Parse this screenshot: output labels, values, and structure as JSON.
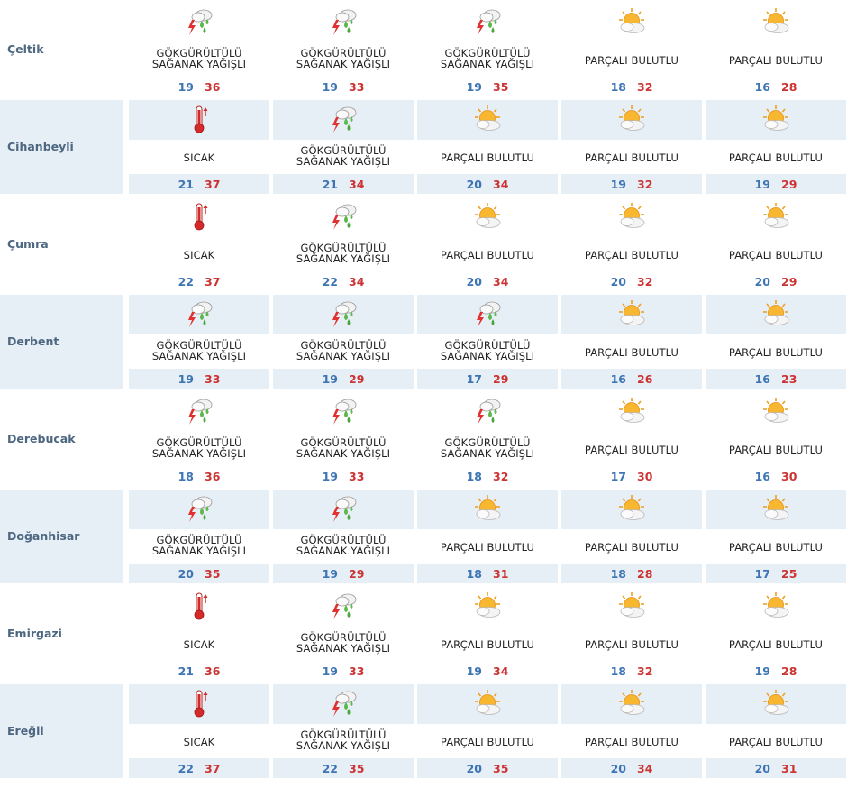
{
  "rows": [
    {
      "city": "Çeltik",
      "days": [
        {
          "icon": "thunder-shower-icon",
          "desc": [
            "GÖKGÜRÜLTÜLÜ",
            "SAĞANAK YAĞIŞLI"
          ],
          "min": "19",
          "max": "36"
        },
        {
          "icon": "thunder-shower-icon",
          "desc": [
            "GÖKGÜRÜLTÜLÜ",
            "SAĞANAK YAĞIŞLI"
          ],
          "min": "19",
          "max": "33"
        },
        {
          "icon": "thunder-shower-icon",
          "desc": [
            "GÖKGÜRÜLTÜLÜ",
            "SAĞANAK YAĞIŞLI"
          ],
          "min": "19",
          "max": "35"
        },
        {
          "icon": "partly-cloudy-icon",
          "desc": [
            "PARÇALI BULUTLU"
          ],
          "min": "18",
          "max": "32"
        },
        {
          "icon": "partly-cloudy-icon",
          "desc": [
            "PARÇALI BULUTLU"
          ],
          "min": "16",
          "max": "28"
        }
      ]
    },
    {
      "city": "Cihanbeyli",
      "days": [
        {
          "icon": "thermometer-hot-icon",
          "desc": [
            "SICAK"
          ],
          "min": "21",
          "max": "37"
        },
        {
          "icon": "thunder-shower-icon",
          "desc": [
            "GÖKGÜRÜLTÜLÜ",
            "SAĞANAK YAĞIŞLI"
          ],
          "min": "21",
          "max": "34"
        },
        {
          "icon": "partly-cloudy-icon",
          "desc": [
            "PARÇALI BULUTLU"
          ],
          "min": "20",
          "max": "34"
        },
        {
          "icon": "partly-cloudy-icon",
          "desc": [
            "PARÇALI BULUTLU"
          ],
          "min": "19",
          "max": "32"
        },
        {
          "icon": "partly-cloudy-icon",
          "desc": [
            "PARÇALI BULUTLU"
          ],
          "min": "19",
          "max": "29"
        }
      ]
    },
    {
      "city": "Çumra",
      "days": [
        {
          "icon": "thermometer-hot-icon",
          "desc": [
            "SICAK"
          ],
          "min": "22",
          "max": "37"
        },
        {
          "icon": "thunder-shower-icon",
          "desc": [
            "GÖKGÜRÜLTÜLÜ",
            "SAĞANAK YAĞIŞLI"
          ],
          "min": "22",
          "max": "34"
        },
        {
          "icon": "partly-cloudy-icon",
          "desc": [
            "PARÇALI BULUTLU"
          ],
          "min": "20",
          "max": "34"
        },
        {
          "icon": "partly-cloudy-icon",
          "desc": [
            "PARÇALI BULUTLU"
          ],
          "min": "20",
          "max": "32"
        },
        {
          "icon": "partly-cloudy-icon",
          "desc": [
            "PARÇALI BULUTLU"
          ],
          "min": "20",
          "max": "29"
        }
      ]
    },
    {
      "city": "Derbent",
      "days": [
        {
          "icon": "thunder-shower-icon",
          "desc": [
            "GÖKGÜRÜLTÜLÜ",
            "SAĞANAK YAĞIŞLI"
          ],
          "min": "19",
          "max": "33"
        },
        {
          "icon": "thunder-shower-icon",
          "desc": [
            "GÖKGÜRÜLTÜLÜ",
            "SAĞANAK YAĞIŞLI"
          ],
          "min": "19",
          "max": "29"
        },
        {
          "icon": "thunder-shower-icon",
          "desc": [
            "GÖKGÜRÜLTÜLÜ",
            "SAĞANAK YAĞIŞLI"
          ],
          "min": "17",
          "max": "29"
        },
        {
          "icon": "partly-cloudy-icon",
          "desc": [
            "PARÇALI BULUTLU"
          ],
          "min": "16",
          "max": "26"
        },
        {
          "icon": "partly-cloudy-icon",
          "desc": [
            "PARÇALI BULUTLU"
          ],
          "min": "16",
          "max": "23"
        }
      ]
    },
    {
      "city": "Derebucak",
      "days": [
        {
          "icon": "thunder-shower-icon",
          "desc": [
            "GÖKGÜRÜLTÜLÜ",
            "SAĞANAK YAĞIŞLI"
          ],
          "min": "18",
          "max": "36"
        },
        {
          "icon": "thunder-shower-icon",
          "desc": [
            "GÖKGÜRÜLTÜLÜ",
            "SAĞANAK YAĞIŞLI"
          ],
          "min": "19",
          "max": "33"
        },
        {
          "icon": "thunder-shower-icon",
          "desc": [
            "GÖKGÜRÜLTÜLÜ",
            "SAĞANAK YAĞIŞLI"
          ],
          "min": "18",
          "max": "32"
        },
        {
          "icon": "partly-cloudy-icon",
          "desc": [
            "PARÇALI BULUTLU"
          ],
          "min": "17",
          "max": "30"
        },
        {
          "icon": "partly-cloudy-icon",
          "desc": [
            "PARÇALI BULUTLU"
          ],
          "min": "16",
          "max": "30"
        }
      ]
    },
    {
      "city": "Doğanhisar",
      "days": [
        {
          "icon": "thunder-shower-icon",
          "desc": [
            "GÖKGÜRÜLTÜLÜ",
            "SAĞANAK YAĞIŞLI"
          ],
          "min": "20",
          "max": "35"
        },
        {
          "icon": "thunder-shower-icon",
          "desc": [
            "GÖKGÜRÜLTÜLÜ",
            "SAĞANAK YAĞIŞLI"
          ],
          "min": "19",
          "max": "29"
        },
        {
          "icon": "partly-cloudy-icon",
          "desc": [
            "PARÇALI BULUTLU"
          ],
          "min": "18",
          "max": "31"
        },
        {
          "icon": "partly-cloudy-icon",
          "desc": [
            "PARÇALI BULUTLU"
          ],
          "min": "18",
          "max": "28"
        },
        {
          "icon": "partly-cloudy-icon",
          "desc": [
            "PARÇALI BULUTLU"
          ],
          "min": "17",
          "max": "25"
        }
      ]
    },
    {
      "city": "Emirgazi",
      "days": [
        {
          "icon": "thermometer-hot-icon",
          "desc": [
            "SICAK"
          ],
          "min": "21",
          "max": "36"
        },
        {
          "icon": "thunder-shower-icon",
          "desc": [
            "GÖKGÜRÜLTÜLÜ",
            "SAĞANAK YAĞIŞLI"
          ],
          "min": "19",
          "max": "33"
        },
        {
          "icon": "partly-cloudy-icon",
          "desc": [
            "PARÇALI BULUTLU"
          ],
          "min": "19",
          "max": "34"
        },
        {
          "icon": "partly-cloudy-icon",
          "desc": [
            "PARÇALI BULUTLU"
          ],
          "min": "18",
          "max": "32"
        },
        {
          "icon": "partly-cloudy-icon",
          "desc": [
            "PARÇALI BULUTLU"
          ],
          "min": "19",
          "max": "28"
        }
      ]
    },
    {
      "city": "Ereğli",
      "days": [
        {
          "icon": "thermometer-hot-icon",
          "desc": [
            "SICAK"
          ],
          "min": "22",
          "max": "37"
        },
        {
          "icon": "thunder-shower-icon",
          "desc": [
            "GÖKGÜRÜLTÜLÜ",
            "SAĞANAK YAĞIŞLI"
          ],
          "min": "22",
          "max": "35"
        },
        {
          "icon": "partly-cloudy-icon",
          "desc": [
            "PARÇALI BULUTLU"
          ],
          "min": "20",
          "max": "35"
        },
        {
          "icon": "partly-cloudy-icon",
          "desc": [
            "PARÇALI BULUTLU"
          ],
          "min": "20",
          "max": "34"
        },
        {
          "icon": "partly-cloudy-icon",
          "desc": [
            "PARÇALI BULUTLU"
          ],
          "min": "20",
          "max": "31"
        }
      ]
    }
  ],
  "colors": {
    "min_temp": "#3d74b4",
    "max_temp": "#cc3333",
    "city": "#4e6781",
    "band": "#e6eef6"
  }
}
